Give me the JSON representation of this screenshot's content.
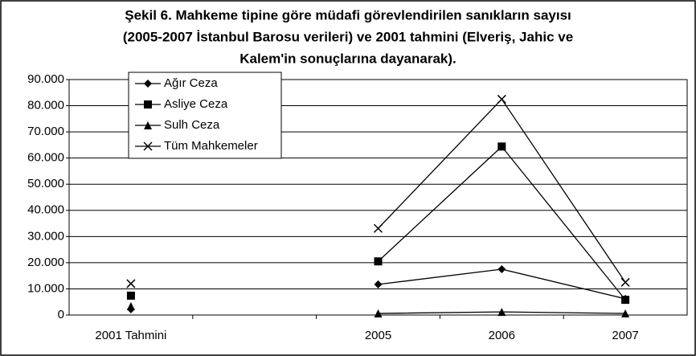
{
  "chart_data": {
    "type": "line",
    "title": [
      "Şekil 6. Mahkeme tipine göre müdafi görevlendirilen sanıkların sayısı",
      "(2005-2007 İstanbul Barosu verileri) ve 2001 tahmini (Elveriş, Jahic ve",
      "Kalem'in sonuçlarına dayanarak)."
    ],
    "categories": [
      "2001 Tahmini",
      null,
      "2005",
      "2006",
      "2007"
    ],
    "series": [
      {
        "name": "Ağır Ceza",
        "color": "#000000",
        "marker": "diamond",
        "values": [
          2200,
          null,
          11700,
          17500,
          6200
        ]
      },
      {
        "name": "Asliye Ceza",
        "color": "#000000",
        "marker": "square",
        "values": [
          7400,
          null,
          20500,
          64400,
          5800
        ]
      },
      {
        "name": "Sulh Ceza",
        "color": "#000000",
        "marker": "triangle",
        "values": [
          3400,
          null,
          600,
          1200,
          600
        ]
      },
      {
        "name": "Tüm Mahkemeler",
        "color": "#000000",
        "marker": "x",
        "values": [
          12000,
          null,
          33100,
          82500,
          12500
        ]
      }
    ],
    "ylim": [
      0,
      90000
    ],
    "yticks": [
      {
        "value": 0,
        "label": "0"
      },
      {
        "value": 10000,
        "label": "10.000"
      },
      {
        "value": 20000,
        "label": "20.000"
      },
      {
        "value": 30000,
        "label": "30.000"
      },
      {
        "value": 40000,
        "label": "40.000"
      },
      {
        "value": 50000,
        "label": "50.000"
      },
      {
        "value": 60000,
        "label": "60.000"
      },
      {
        "value": 70000,
        "label": "70.000"
      },
      {
        "value": 80000,
        "label": "80.000"
      },
      {
        "value": 90000,
        "label": "90.000"
      }
    ],
    "grid": true,
    "legend": "upper left"
  }
}
